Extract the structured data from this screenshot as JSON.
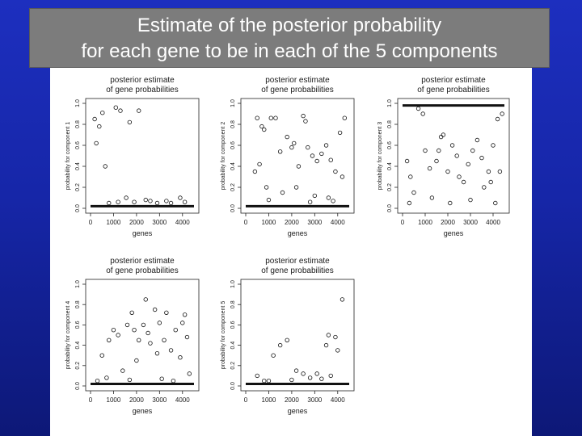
{
  "slide": {
    "title_line1": "Estimate of the posterior probability",
    "title_line2": "for each gene to be in each of the 5 components"
  },
  "chart_data": [
    {
      "type": "scatter",
      "title": "posterior estimate of gene probabilities",
      "xlabel": "genes",
      "ylabel": "probability for component 1",
      "xlim": [
        0,
        4500
      ],
      "ylim": [
        0,
        1
      ],
      "xticks": [
        "0",
        "1000",
        "2000",
        "3000",
        "4000"
      ],
      "yticks": [
        "0.0",
        "0.2",
        "0.4",
        "0.6",
        "0.8",
        "1.0"
      ],
      "points": [
        [
          180,
          0.85
        ],
        [
          250,
          0.62
        ],
        [
          380,
          0.78
        ],
        [
          520,
          0.91
        ],
        [
          640,
          0.4
        ],
        [
          1100,
          0.96
        ],
        [
          1300,
          0.93
        ],
        [
          1550,
          0.1
        ],
        [
          1700,
          0.82
        ],
        [
          2100,
          0.93
        ],
        [
          2400,
          0.08
        ],
        [
          3300,
          0.07
        ],
        [
          3900,
          0.1
        ],
        [
          1900,
          0.06
        ],
        [
          2600,
          0.07
        ],
        [
          800,
          0.05
        ],
        [
          1200,
          0.06
        ],
        [
          2900,
          0.05
        ],
        [
          4100,
          0.06
        ],
        [
          3500,
          0.05
        ]
      ],
      "baseline_value": 0.02
    },
    {
      "type": "scatter",
      "title": "posterior estimate of gene probabilities",
      "xlabel": "genes",
      "ylabel": "probability for component 2",
      "xlim": [
        0,
        4500
      ],
      "ylim": [
        0,
        1
      ],
      "xticks": [
        "0",
        "1000",
        "2000",
        "3000",
        "4000"
      ],
      "yticks": [
        "0.0",
        "0.2",
        "0.4",
        "0.6",
        "0.8",
        "1.0"
      ],
      "points": [
        [
          400,
          0.35
        ],
        [
          500,
          0.86
        ],
        [
          600,
          0.42
        ],
        [
          700,
          0.78
        ],
        [
          800,
          0.75
        ],
        [
          1100,
          0.86
        ],
        [
          1300,
          0.86
        ],
        [
          1500,
          0.54
        ],
        [
          1800,
          0.68
        ],
        [
          2000,
          0.58
        ],
        [
          2100,
          0.62
        ],
        [
          2300,
          0.4
        ],
        [
          2500,
          0.88
        ],
        [
          2600,
          0.83
        ],
        [
          2700,
          0.58
        ],
        [
          2900,
          0.5
        ],
        [
          3100,
          0.45
        ],
        [
          3300,
          0.52
        ],
        [
          3500,
          0.6
        ],
        [
          3700,
          0.46
        ],
        [
          3900,
          0.35
        ],
        [
          4100,
          0.72
        ],
        [
          4200,
          0.3
        ],
        [
          4300,
          0.86
        ],
        [
          900,
          0.2
        ],
        [
          1600,
          0.15
        ],
        [
          2200,
          0.2
        ],
        [
          3000,
          0.12
        ],
        [
          3600,
          0.1
        ],
        [
          1000,
          0.08
        ],
        [
          2800,
          0.06
        ],
        [
          3800,
          0.07
        ]
      ],
      "baseline_value": 0.02
    },
    {
      "type": "scatter",
      "title": "posterior estimate of gene probabilities",
      "xlabel": "genes",
      "ylabel": "probability for component 3",
      "xlim": [
        0,
        4500
      ],
      "ylim": [
        0,
        1
      ],
      "xticks": [
        "0",
        "1000",
        "2000",
        "3000",
        "4000"
      ],
      "yticks": [
        "0.0",
        "0.2",
        "0.4",
        "0.6",
        "0.8",
        "1.0"
      ],
      "points": [
        [
          200,
          0.45
        ],
        [
          350,
          0.3
        ],
        [
          500,
          0.15
        ],
        [
          700,
          0.95
        ],
        [
          900,
          0.9
        ],
        [
          1000,
          0.55
        ],
        [
          1200,
          0.38
        ],
        [
          1500,
          0.45
        ],
        [
          1600,
          0.55
        ],
        [
          1700,
          0.68
        ],
        [
          1800,
          0.7
        ],
        [
          2000,
          0.35
        ],
        [
          2200,
          0.6
        ],
        [
          2400,
          0.5
        ],
        [
          2500,
          0.3
        ],
        [
          2700,
          0.25
        ],
        [
          2900,
          0.42
        ],
        [
          3100,
          0.55
        ],
        [
          3300,
          0.65
        ],
        [
          3500,
          0.48
        ],
        [
          3600,
          0.2
        ],
        [
          3800,
          0.35
        ],
        [
          3900,
          0.25
        ],
        [
          4000,
          0.6
        ],
        [
          4200,
          0.85
        ],
        [
          4300,
          0.35
        ],
        [
          4400,
          0.9
        ],
        [
          300,
          0.05
        ],
        [
          1300,
          0.1
        ],
        [
          2100,
          0.05
        ],
        [
          3000,
          0.08
        ],
        [
          4100,
          0.05
        ]
      ],
      "top_band_value": 0.98
    },
    {
      "type": "scatter",
      "title": "posterior estimate of gene probabilities",
      "xlabel": "genes",
      "ylabel": "probability for component 4",
      "xlim": [
        0,
        4500
      ],
      "ylim": [
        0,
        1
      ],
      "xticks": [
        "0",
        "1000",
        "2000",
        "3000",
        "4000"
      ],
      "yticks": [
        "0.0",
        "0.2",
        "0.4",
        "0.6",
        "0.8",
        "1.0"
      ],
      "points": [
        [
          300,
          0.05
        ],
        [
          500,
          0.3
        ],
        [
          800,
          0.45
        ],
        [
          1000,
          0.55
        ],
        [
          1200,
          0.5
        ],
        [
          1400,
          0.15
        ],
        [
          1600,
          0.6
        ],
        [
          1800,
          0.72
        ],
        [
          1900,
          0.55
        ],
        [
          2000,
          0.25
        ],
        [
          2100,
          0.45
        ],
        [
          2300,
          0.6
        ],
        [
          2400,
          0.85
        ],
        [
          2500,
          0.52
        ],
        [
          2600,
          0.42
        ],
        [
          2800,
          0.75
        ],
        [
          2900,
          0.32
        ],
        [
          3000,
          0.62
        ],
        [
          3200,
          0.45
        ],
        [
          3300,
          0.72
        ],
        [
          3500,
          0.35
        ],
        [
          3700,
          0.55
        ],
        [
          3900,
          0.28
        ],
        [
          4000,
          0.62
        ],
        [
          4100,
          0.7
        ],
        [
          4200,
          0.48
        ],
        [
          4300,
          0.12
        ],
        [
          700,
          0.08
        ],
        [
          1700,
          0.06
        ],
        [
          3100,
          0.07
        ],
        [
          3600,
          0.05
        ]
      ],
      "baseline_value": 0.02
    },
    {
      "type": "scatter",
      "title": "posterior estimate of gene probabilities",
      "xlabel": "genes",
      "ylabel": "probability for component 5",
      "xlim": [
        0,
        4500
      ],
      "ylim": [
        0,
        1
      ],
      "xticks": [
        "0",
        "1000",
        "2000",
        "3000",
        "4000"
      ],
      "yticks": [
        "0.0",
        "0.2",
        "0.4",
        "0.6",
        "0.8",
        "1.0"
      ],
      "points": [
        [
          500,
          0.1
        ],
        [
          800,
          0.05
        ],
        [
          1200,
          0.3
        ],
        [
          1500,
          0.4
        ],
        [
          1800,
          0.45
        ],
        [
          2200,
          0.15
        ],
        [
          2500,
          0.12
        ],
        [
          2800,
          0.08
        ],
        [
          3100,
          0.12
        ],
        [
          3500,
          0.4
        ],
        [
          3600,
          0.5
        ],
        [
          3900,
          0.48
        ],
        [
          4000,
          0.35
        ],
        [
          4200,
          0.85
        ],
        [
          3700,
          0.1
        ],
        [
          2000,
          0.06
        ],
        [
          1000,
          0.05
        ],
        [
          3300,
          0.07
        ]
      ],
      "baseline_value": 0.02
    }
  ]
}
